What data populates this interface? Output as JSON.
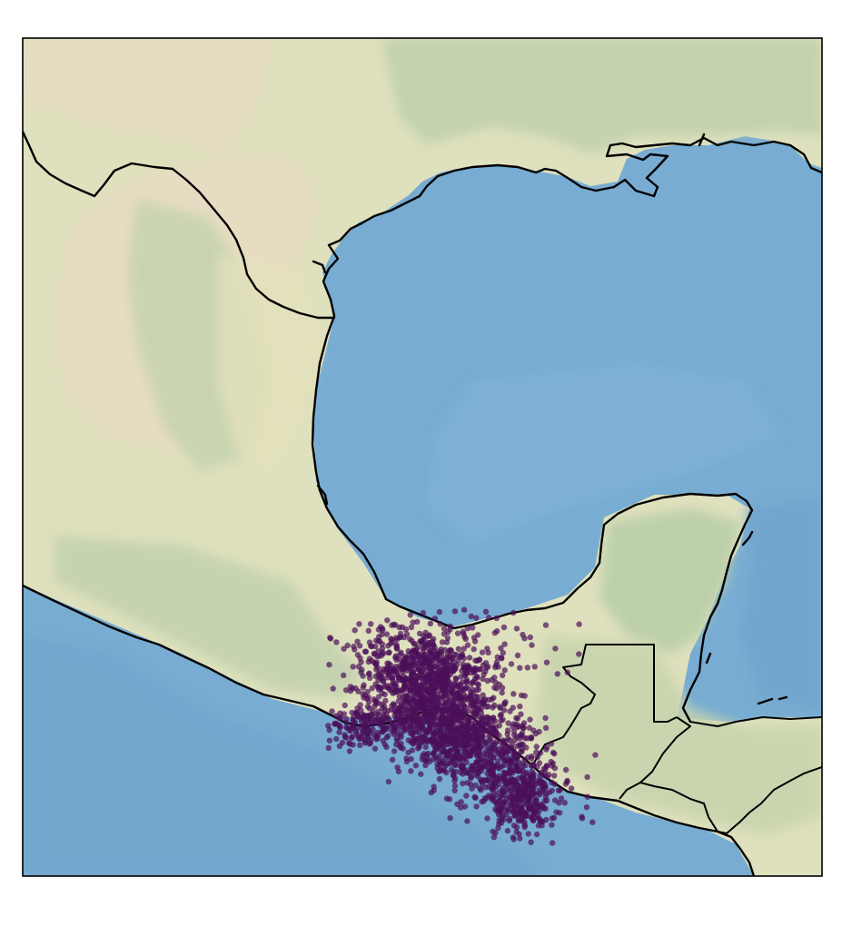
{
  "map": {
    "colors": {
      "ocean": "#7aaed3",
      "ocean_deep": "#6ea4cc",
      "land_desert": "#e3dcc4",
      "land_dry": "#e0e2bf",
      "land_green": "#bccdae",
      "coastline": "#000000",
      "points": "#4b0f5a",
      "frame": "#000000"
    },
    "layers": [
      "shaded-relief",
      "coastlines",
      "country-borders",
      "scatter-points"
    ],
    "grid": false,
    "legend": "none"
  }
}
